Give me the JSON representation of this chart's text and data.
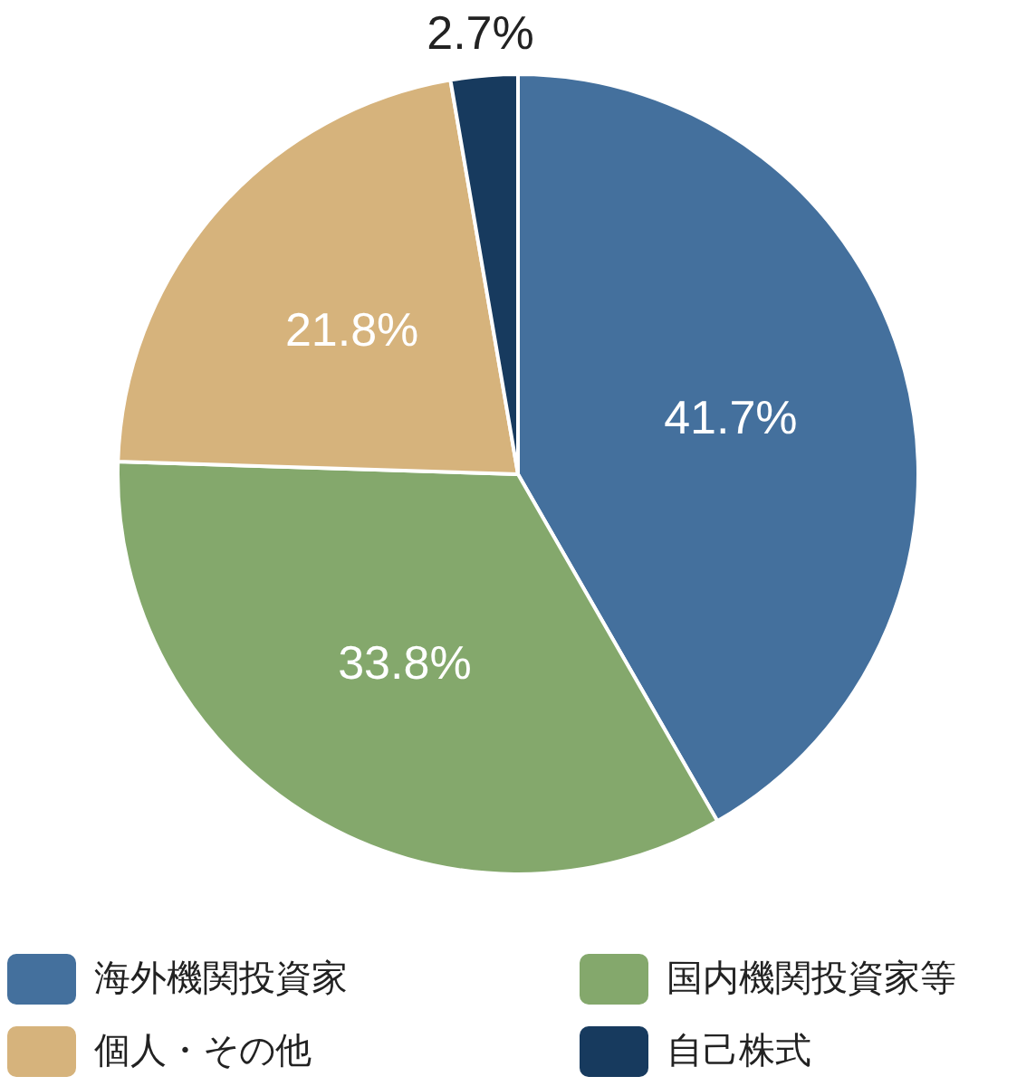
{
  "chart_data": {
    "type": "pie",
    "categories": [
      "海外機関投資家",
      "国内機関投資家等",
      "個人・その他",
      "自己株式"
    ],
    "values": [
      41.7,
      33.8,
      21.8,
      2.7
    ],
    "value_labels": [
      "41.7%",
      "33.8%",
      "21.8%",
      "2.7%"
    ],
    "colors": [
      "#44709d",
      "#84a86c",
      "#d6b37c",
      "#173a5e"
    ],
    "legend": "bottom"
  }
}
